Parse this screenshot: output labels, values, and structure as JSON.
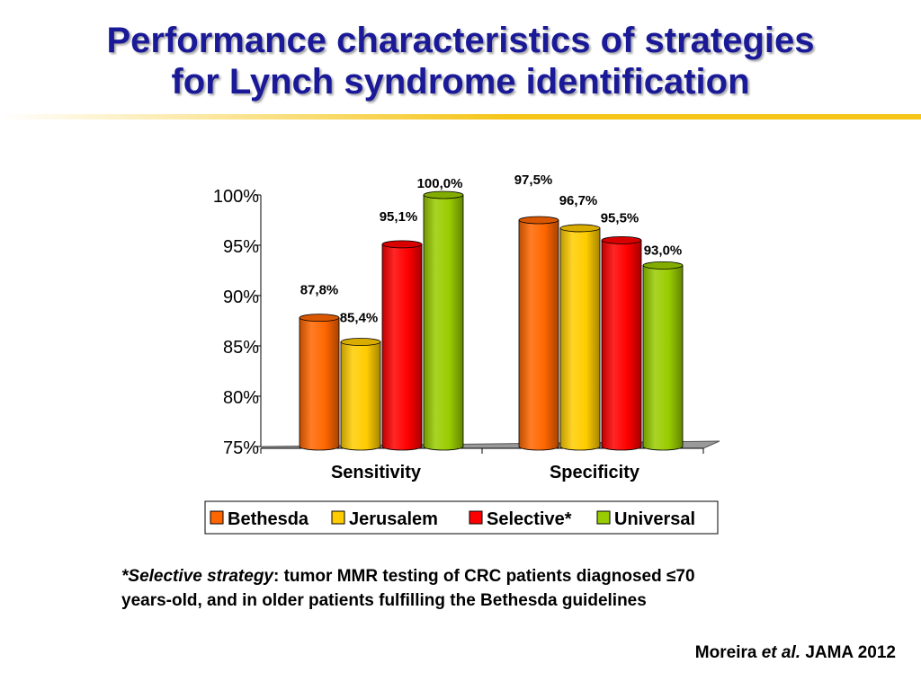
{
  "title": {
    "line1": "Performance characteristics of strategies",
    "line2": "for Lynch syndrome identification"
  },
  "chart_data": {
    "type": "bar",
    "categories": [
      "Sensitivity",
      "Specificity"
    ],
    "series": [
      {
        "name": "Bethesda",
        "color": "#ff6600",
        "values": [
          87.8,
          97.5
        ],
        "labels": [
          "87,8%",
          "97,5%"
        ]
      },
      {
        "name": "Jerusalem",
        "color": "#ffcc00",
        "values": [
          85.4,
          96.7
        ],
        "labels": [
          "85,4%",
          "96,7%"
        ]
      },
      {
        "name": "Selective*",
        "color": "#ff0000",
        "values": [
          95.1,
          95.5
        ],
        "labels": [
          "95,1%",
          "95,5%"
        ]
      },
      {
        "name": "Universal",
        "color": "#99cc00",
        "values": [
          100.0,
          93.0
        ],
        "labels": [
          "100,0%",
          "93,0%"
        ]
      }
    ],
    "ylim": [
      75,
      100
    ],
    "yticks": [
      75,
      80,
      85,
      90,
      95,
      100
    ],
    "ytick_labels": [
      "75%",
      "80%",
      "85%",
      "90%",
      "95%",
      "100%"
    ],
    "legend_position": "bottom",
    "style": "3d-cylinder",
    "grid": false
  },
  "footnote": {
    "line1_italic": "*Selective strategy",
    "line1_rest": ": tumor MMR testing of CRC patients diagnosed ≤70",
    "line2": "years-old, and in older patients fulfilling the Bethesda guidelines"
  },
  "citation": {
    "author": "Moreira",
    "etal": "et al.",
    "journal": "JAMA 2012"
  }
}
